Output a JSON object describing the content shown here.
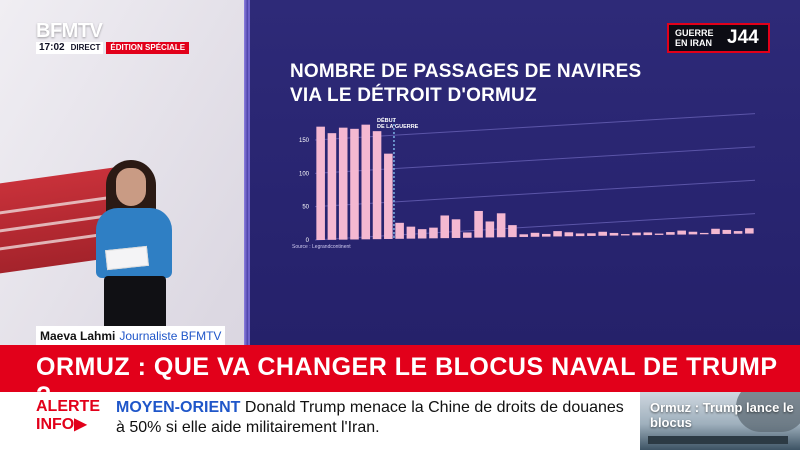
{
  "channel": {
    "logo": "BFMTV",
    "time": "17:02",
    "live_label": "DIRECT",
    "edition_label": "ÉDITION SPÉCIALE"
  },
  "badge": {
    "line1": "GUERRE",
    "line2": "EN IRAN",
    "day": "J44"
  },
  "chart_data": {
    "type": "bar",
    "title_line1": "NOMBRE DE PASSAGES DE NAVIRES",
    "title_line2": "VIA LE DÉTROIT D'ORMUZ",
    "annotation_line1": "DÉBUT",
    "annotation_line2": "DE LA GUERRE",
    "source": "Source : Legrandcontinent",
    "ylim": [
      0,
      180
    ],
    "yticks": [
      "0",
      "50",
      "100",
      "150"
    ],
    "grid": true,
    "marker_index": 7,
    "values": [
      170,
      160,
      168,
      166,
      172,
      162,
      128,
      24,
      18,
      14,
      16,
      34,
      28,
      8,
      40,
      24,
      36,
      18,
      4,
      6,
      4,
      8,
      6,
      4,
      4,
      6,
      4,
      2,
      4,
      4,
      2,
      4,
      6,
      4,
      2,
      8,
      6,
      4,
      8
    ]
  },
  "presenter": {
    "name": "Maeva Lahmi",
    "role": "Journaliste BFMTV"
  },
  "headline": "ORMUZ : QUE VA CHANGER LE BLOCUS NAVAL DE TRUMP ?",
  "ticker": {
    "alert_line1": "ALERTE",
    "alert_line2": "INFO",
    "region": "MOYEN-ORIENT",
    "text": "Donald Trump menace la Chine de droits de douanes à 50% si elle aide militairement l'Iran."
  },
  "thumbnail": {
    "caption": "Ormuz : Trump lance le blocus"
  },
  "colors": {
    "brand_red": "#e2001a",
    "screen_blue": "#2a2673",
    "bar_pink": "#f4b8d1",
    "marker": "#8fd3ff",
    "link_blue": "#1f56c9"
  }
}
